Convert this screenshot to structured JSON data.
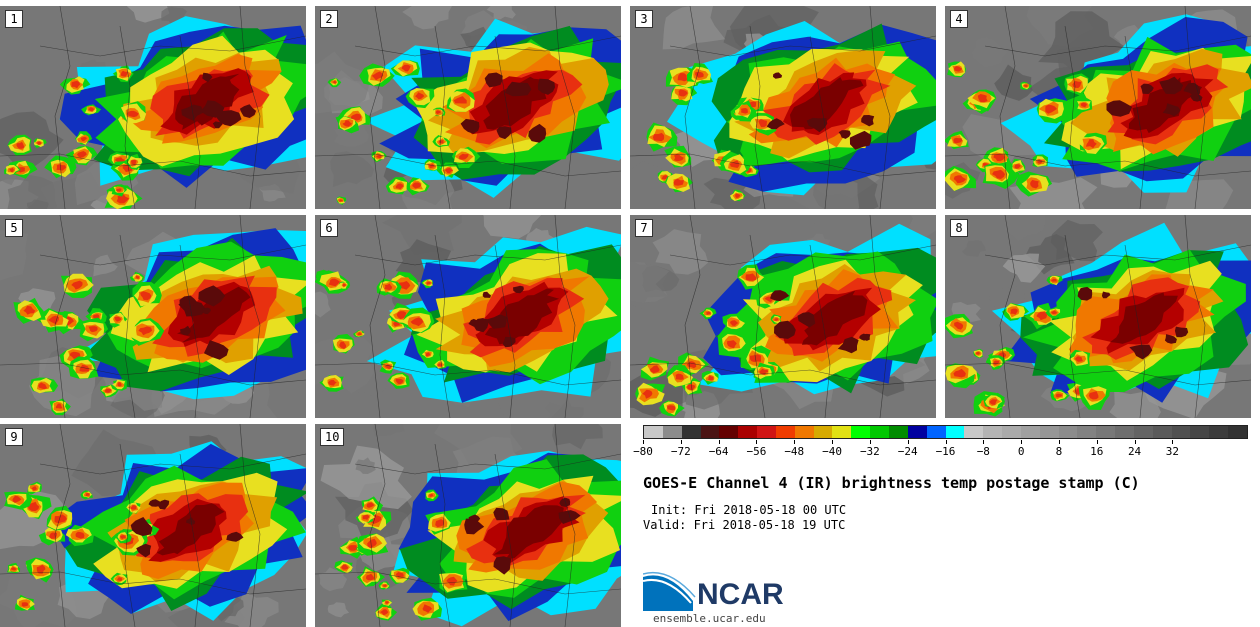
{
  "panels": [
    {
      "label": "1"
    },
    {
      "label": "2"
    },
    {
      "label": "3"
    },
    {
      "label": "4"
    },
    {
      "label": "5"
    },
    {
      "label": "6"
    },
    {
      "label": "7"
    },
    {
      "label": "8"
    },
    {
      "label": "9"
    },
    {
      "label": "10"
    }
  ],
  "colorbar": {
    "colors": [
      "#c8c8c8",
      "#8c8c8c",
      "#323232",
      "#4b1414",
      "#640000",
      "#aa0000",
      "#d01414",
      "#f03c00",
      "#f07800",
      "#d7aa00",
      "#e1e114",
      "#00ff00",
      "#00c800",
      "#008c00",
      "#0000a0",
      "#0064ff",
      "#00ffff",
      "#c8c8c8",
      "#b4b4b4",
      "#aaaaaa",
      "#a0a0a0",
      "#969696",
      "#8c8c8c",
      "#828282",
      "#787878",
      "#6e6e6e",
      "#646464",
      "#5a5a5a",
      "#505050",
      "#464646",
      "#3c3c3c",
      "#323232"
    ],
    "ticks": [
      "−80",
      "−72",
      "−64",
      "−56",
      "−48",
      "−40",
      "−32",
      "−24",
      "−16",
      "−8",
      "0",
      "8",
      "16",
      "24",
      "32"
    ]
  },
  "title": "GOES-E Channel 4 (IR) brightness temp postage stamp (C)",
  "init": "Init: Fri 2018-05-18 00 UTC",
  "valid": "Valid: Fri 2018-05-18 19 UTC",
  "logo": {
    "text": "NCAR",
    "colors": {
      "wave": "#0072bc",
      "text": "#1f3a66"
    }
  },
  "site": "ensemble.ucar.edu",
  "palette": {
    "cold_core": "#7a0000",
    "dark_red": "#b40000",
    "red": "#e83010",
    "orange": "#f07800",
    "yellow_orange": "#e0a000",
    "yellow": "#e8e020",
    "green": "#10d010",
    "dark_green": "#008c20",
    "blue": "#1030c0",
    "cyan": "#00e0ff",
    "clear_sky": "#777777"
  }
}
